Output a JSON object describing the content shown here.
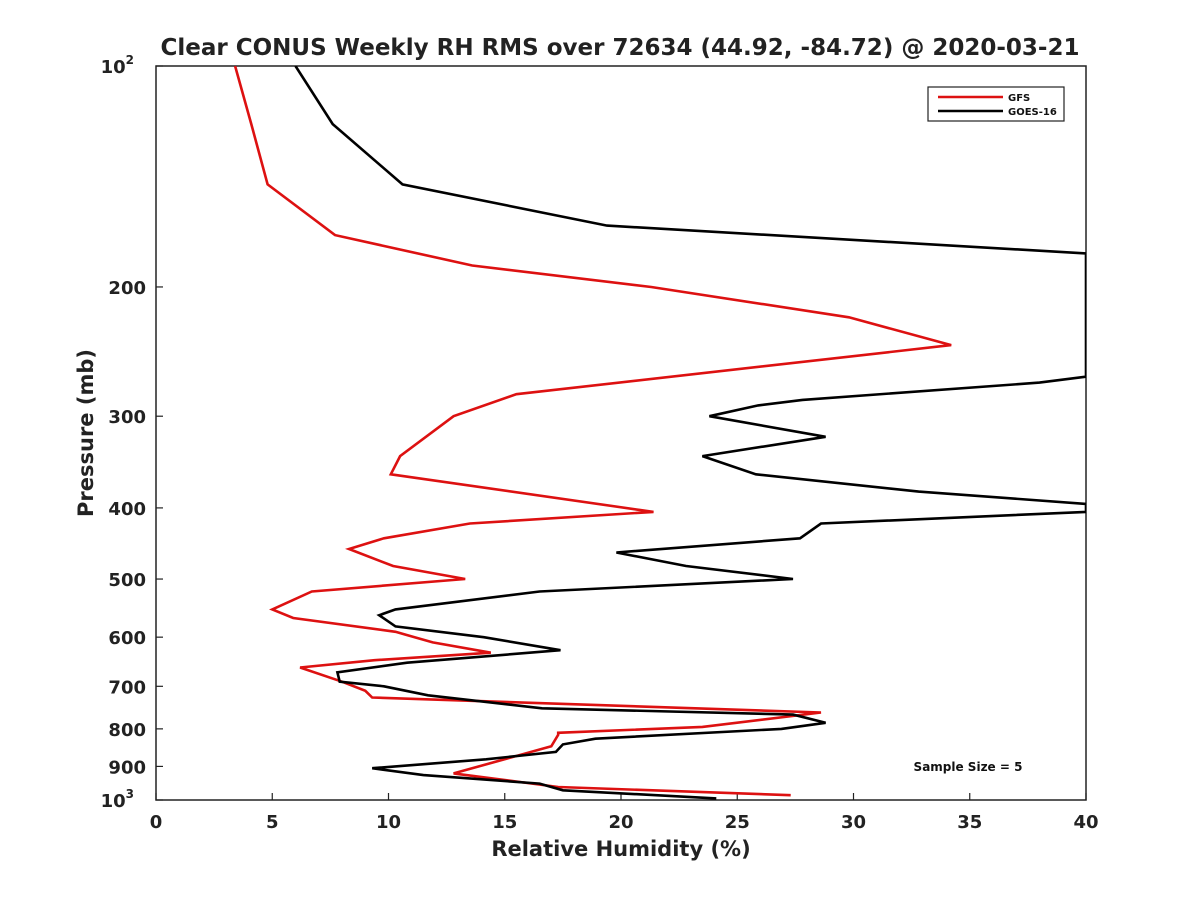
{
  "chart_data": {
    "type": "line",
    "title": "Clear CONUS Weekly RH RMS over 72634 (44.92, -84.72) @ 2020-03-21",
    "xlabel": "Relative Humidity (%)",
    "ylabel": "Pressure (mb)",
    "xlim": [
      0,
      40
    ],
    "ylim": [
      100,
      1000
    ],
    "yscale": "log",
    "y_inverted": true,
    "xticks": [
      0,
      5,
      10,
      15,
      20,
      25,
      30,
      35,
      40
    ],
    "yticks": [
      {
        "value": 100,
        "label": "10",
        "sup": "2"
      },
      {
        "value": 200,
        "label": "200"
      },
      {
        "value": 300,
        "label": "300"
      },
      {
        "value": 400,
        "label": "400"
      },
      {
        "value": 500,
        "label": "500"
      },
      {
        "value": 600,
        "label": "600"
      },
      {
        "value": 700,
        "label": "700"
      },
      {
        "value": 800,
        "label": "800"
      },
      {
        "value": 900,
        "label": "900"
      },
      {
        "value": 1000,
        "label": "10",
        "sup": "3"
      }
    ],
    "legend_position": "top-right",
    "annotation": "Sample Size = 5",
    "series": [
      {
        "name": "GFS",
        "color": "#dd1111",
        "points": [
          [
            3.4,
            100
          ],
          [
            4.1,
            120
          ],
          [
            4.8,
            145
          ],
          [
            7.7,
            170
          ],
          [
            13.6,
            187
          ],
          [
            21.3,
            200
          ],
          [
            29.8,
            220
          ],
          [
            34.2,
            240
          ],
          [
            15.5,
            280
          ],
          [
            12.8,
            300
          ],
          [
            10.5,
            340
          ],
          [
            10.1,
            360
          ],
          [
            21.4,
            405
          ],
          [
            13.5,
            420
          ],
          [
            9.8,
            440
          ],
          [
            8.3,
            455
          ],
          [
            10.2,
            480
          ],
          [
            13.3,
            500
          ],
          [
            6.7,
            520
          ],
          [
            5.0,
            550
          ],
          [
            5.9,
            565
          ],
          [
            10.3,
            590
          ],
          [
            11.9,
            610
          ],
          [
            14.4,
            630
          ],
          [
            9.4,
            645
          ],
          [
            6.2,
            660
          ],
          [
            8.0,
            690
          ],
          [
            9.0,
            710
          ],
          [
            9.3,
            725
          ],
          [
            28.6,
            760
          ],
          [
            23.5,
            795
          ],
          [
            17.3,
            810
          ],
          [
            17.3,
            815
          ],
          [
            17.0,
            845
          ],
          [
            12.8,
            920
          ],
          [
            17.3,
            960
          ],
          [
            27.3,
            985
          ]
        ]
      },
      {
        "name": "GOES-16",
        "color": "#000000",
        "points": [
          [
            6.0,
            100
          ],
          [
            7.6,
            120
          ],
          [
            10.6,
            145
          ],
          [
            19.4,
            165
          ],
          [
            40.0,
            180
          ],
          [
            40.0,
            265
          ],
          [
            38.0,
            270
          ],
          [
            27.8,
            285
          ],
          [
            25.9,
            290
          ],
          [
            23.8,
            300
          ],
          [
            28.8,
            320
          ],
          [
            23.5,
            340
          ],
          [
            25.8,
            360
          ],
          [
            32.8,
            380
          ],
          [
            40.0,
            395
          ],
          [
            40.0,
            405
          ],
          [
            28.6,
            420
          ],
          [
            27.7,
            440
          ],
          [
            19.8,
            460
          ],
          [
            22.8,
            480
          ],
          [
            27.4,
            500
          ],
          [
            16.5,
            520
          ],
          [
            10.3,
            550
          ],
          [
            9.6,
            560
          ],
          [
            10.3,
            580
          ],
          [
            14.1,
            600
          ],
          [
            17.4,
            625
          ],
          [
            10.8,
            650
          ],
          [
            7.8,
            670
          ],
          [
            7.9,
            690
          ],
          [
            9.8,
            700
          ],
          [
            11.7,
            720
          ],
          [
            16.6,
            750
          ],
          [
            27.4,
            765
          ],
          [
            28.8,
            785
          ],
          [
            26.9,
            800
          ],
          [
            18.9,
            825
          ],
          [
            17.5,
            840
          ],
          [
            17.2,
            860
          ],
          [
            14.2,
            880
          ],
          [
            9.3,
            905
          ],
          [
            11.5,
            925
          ],
          [
            16.5,
            950
          ],
          [
            17.5,
            970
          ],
          [
            24.1,
            995
          ]
        ]
      }
    ]
  }
}
